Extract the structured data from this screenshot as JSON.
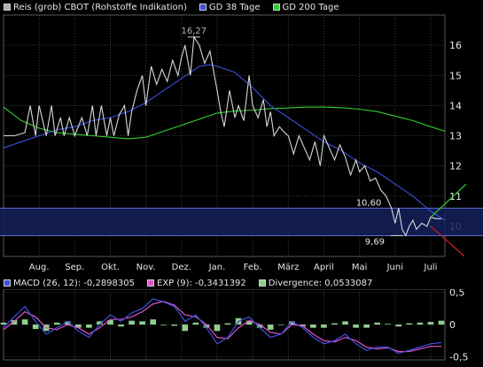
{
  "colors": {
    "background": "#000000",
    "grid": "#404040",
    "price": "#d8d8d8",
    "gd38": "#3b4fe0",
    "gd200": "#2fd02f",
    "band": "#14205a",
    "band_edge": "#5c6fd0",
    "trend_up": "#2fd02f",
    "trend_down": "#d02020",
    "macd": "#3b4fe0",
    "exp": "#e055c8",
    "divergence": "#8fcf8f"
  },
  "legend_main": [
    {
      "label": "Reis (grob) CBOT (Rohstoffe Indikation)",
      "swatch": "#b0b0b0"
    },
    {
      "label": "GD 38 Tage",
      "swatch": "#3b4fe0"
    },
    {
      "label": "GD 200 Tage",
      "swatch": "#2fd02f"
    }
  ],
  "legend_macd": [
    {
      "label": "MACD (26, 12): -0,2898305",
      "swatch": "#3b4fe0"
    },
    {
      "label": "EXP (9): -0,3431392",
      "swatch": "#e055c8"
    },
    {
      "label": "Divergence: 0,0533087",
      "swatch": "#8fcf8f"
    }
  ],
  "chart_data": [
    {
      "type": "line",
      "title": "Reis (grob) CBOT (Rohstoffe Indikation)",
      "ylim": [
        9.0,
        17.0
      ],
      "y_ticks": [
        "16",
        "15",
        "14",
        "13",
        "12",
        "11",
        "10"
      ],
      "y_tick_values": [
        16,
        15,
        14,
        13,
        12,
        11,
        10
      ],
      "xlim": [
        0,
        12.4
      ],
      "x_labels": [
        "Aug.",
        "Sep.",
        "Okt.",
        "Nov.",
        "Dez.",
        "Jan.",
        "Feb.",
        "März",
        "April",
        "Mai",
        "Juni",
        "Juli"
      ],
      "x_label_positions": [
        1,
        2,
        3,
        4,
        5,
        6,
        7,
        8,
        9,
        10,
        11,
        12
      ],
      "annotations": [
        {
          "text": "16,27",
          "x": 5.35,
          "y": 16.27
        },
        {
          "text": "10,60",
          "x": 10.55,
          "y": 10.6
        },
        {
          "text": "9,69",
          "x": 11.05,
          "y": 9.69
        }
      ],
      "band": [
        9.69,
        10.6
      ],
      "series": [
        {
          "name": "Reis (grob) CBOT (Rohstoffe Indikation)",
          "x": [
            0,
            0.3,
            0.6,
            0.75,
            0.9,
            1.0,
            1.2,
            1.35,
            1.45,
            1.6,
            1.7,
            1.85,
            2.0,
            2.2,
            2.35,
            2.5,
            2.6,
            2.75,
            2.9,
            3.0,
            3.1,
            3.25,
            3.4,
            3.5,
            3.6,
            3.75,
            3.9,
            4.0,
            4.15,
            4.3,
            4.45,
            4.6,
            4.75,
            4.9,
            5.0,
            5.1,
            5.25,
            5.35,
            5.5,
            5.65,
            5.8,
            6.0,
            6.1,
            6.2,
            6.35,
            6.5,
            6.6,
            6.75,
            6.9,
            7.0,
            7.15,
            7.3,
            7.4,
            7.5,
            7.6,
            7.75,
            7.9,
            8.0,
            8.15,
            8.3,
            8.45,
            8.6,
            8.75,
            8.9,
            9.0,
            9.15,
            9.3,
            9.45,
            9.6,
            9.75,
            9.9,
            10.0,
            10.15,
            10.3,
            10.45,
            10.6,
            10.75,
            10.9,
            11.0,
            11.1,
            11.2,
            11.3,
            11.4,
            11.5,
            11.6,
            11.75,
            11.9,
            12.0,
            12.15,
            12.3
          ],
          "values": [
            13.0,
            13.0,
            13.1,
            14.0,
            13.0,
            14.0,
            13.0,
            14.0,
            13.0,
            13.6,
            13.0,
            13.6,
            13.0,
            13.6,
            13.0,
            14.0,
            13.0,
            14.0,
            13.0,
            13.6,
            13.0,
            13.7,
            14.0,
            13.0,
            13.8,
            14.5,
            15.0,
            14.0,
            15.3,
            14.7,
            15.2,
            14.8,
            15.5,
            15.0,
            15.6,
            16.0,
            15.0,
            16.27,
            16.0,
            15.4,
            15.8,
            14.5,
            13.8,
            13.3,
            14.5,
            13.6,
            14.0,
            13.5,
            15.0,
            14.0,
            13.6,
            14.2,
            13.3,
            13.8,
            13.0,
            13.3,
            13.1,
            13.0,
            12.4,
            13.0,
            12.6,
            12.2,
            12.8,
            12.0,
            13.0,
            12.6,
            12.2,
            12.7,
            12.3,
            11.7,
            12.2,
            11.8,
            12.0,
            11.5,
            11.6,
            11.2,
            11.0,
            10.6,
            10.1,
            10.6,
            9.9,
            9.69,
            10.0,
            10.2,
            9.9,
            10.1,
            10.0,
            10.3,
            10.25,
            10.25
          ]
        },
        {
          "name": "GD 38 Tage",
          "x": [
            0,
            0.5,
            1.0,
            1.5,
            2.0,
            2.5,
            3.0,
            3.5,
            4.0,
            4.5,
            5.0,
            5.5,
            5.8,
            6.0,
            6.5,
            7.0,
            7.5,
            8.0,
            8.5,
            9.0,
            9.5,
            10.0,
            10.5,
            11.0,
            11.5,
            12.0,
            12.4
          ],
          "values": [
            12.6,
            12.8,
            13.0,
            13.2,
            13.3,
            13.5,
            13.6,
            13.8,
            14.1,
            14.5,
            14.9,
            15.3,
            15.35,
            15.3,
            15.1,
            14.6,
            14.0,
            13.6,
            13.2,
            12.8,
            12.5,
            12.1,
            11.8,
            11.4,
            11.0,
            10.5,
            10.2
          ]
        },
        {
          "name": "GD 200 Tage",
          "x": [
            0,
            0.5,
            1.0,
            1.5,
            2.0,
            2.5,
            3.0,
            3.5,
            4.0,
            4.5,
            5.0,
            5.5,
            6.0,
            6.5,
            7.0,
            7.5,
            8.0,
            8.5,
            9.0,
            9.5,
            10.0,
            10.5,
            11.0,
            11.5,
            12.0,
            12.4
          ],
          "values": [
            13.95,
            13.5,
            13.25,
            13.1,
            13.05,
            13.0,
            12.95,
            12.9,
            12.95,
            13.15,
            13.35,
            13.55,
            13.75,
            13.82,
            13.85,
            13.9,
            13.92,
            13.95,
            13.95,
            13.93,
            13.88,
            13.8,
            13.65,
            13.5,
            13.3,
            13.15
          ]
        }
      ],
      "trend_lines": [
        {
          "direction": "up",
          "x": [
            12.0,
            13.0
          ],
          "values": [
            10.3,
            11.4
          ]
        },
        {
          "direction": "down",
          "x": [
            12.0,
            12.95
          ],
          "values": [
            10.0,
            9.0
          ]
        }
      ]
    },
    {
      "type": "line",
      "title": "MACD",
      "ylim": [
        -0.55,
        0.55
      ],
      "y_ticks": [
        "0,5",
        "0",
        "-0,5"
      ],
      "y_tick_values": [
        0.5,
        0,
        -0.5
      ],
      "xlim": [
        0,
        12.4
      ],
      "series": [
        {
          "name": "MACD (26, 12)",
          "x": [
            0,
            0.3,
            0.6,
            0.9,
            1.2,
            1.5,
            1.8,
            2.1,
            2.4,
            2.7,
            3.0,
            3.3,
            3.6,
            3.9,
            4.2,
            4.5,
            4.8,
            5.1,
            5.4,
            5.7,
            6.0,
            6.3,
            6.6,
            6.9,
            7.2,
            7.5,
            7.8,
            8.1,
            8.4,
            8.7,
            9.0,
            9.3,
            9.6,
            9.9,
            10.2,
            10.5,
            10.8,
            11.1,
            11.4,
            11.7,
            12.0,
            12.3
          ],
          "values": [
            -0.05,
            0.12,
            0.28,
            0.05,
            -0.15,
            -0.05,
            0.05,
            -0.1,
            -0.2,
            0.0,
            0.15,
            0.05,
            0.18,
            0.25,
            0.4,
            0.35,
            0.28,
            0.05,
            0.15,
            -0.05,
            -0.3,
            -0.2,
            0.05,
            0.12,
            -0.05,
            -0.2,
            -0.15,
            0.05,
            -0.05,
            -0.2,
            -0.3,
            -0.25,
            -0.15,
            -0.3,
            -0.4,
            -0.35,
            -0.35,
            -0.45,
            -0.4,
            -0.35,
            -0.3,
            -0.28
          ]
        },
        {
          "name": "EXP (9)",
          "x": [
            0,
            0.3,
            0.6,
            0.9,
            1.2,
            1.5,
            1.8,
            2.1,
            2.4,
            2.7,
            3.0,
            3.3,
            3.6,
            3.9,
            4.2,
            4.5,
            4.8,
            5.1,
            5.4,
            5.7,
            6.0,
            6.3,
            6.6,
            6.9,
            7.2,
            7.5,
            7.8,
            8.1,
            8.4,
            8.7,
            9.0,
            9.3,
            9.6,
            9.9,
            10.2,
            10.5,
            10.8,
            11.1,
            11.4,
            11.7,
            12.0,
            12.3
          ],
          "values": [
            -0.08,
            0.05,
            0.2,
            0.12,
            -0.05,
            -0.08,
            0.0,
            -0.05,
            -0.15,
            -0.05,
            0.08,
            0.08,
            0.12,
            0.2,
            0.32,
            0.36,
            0.3,
            0.15,
            0.12,
            0.0,
            -0.2,
            -0.22,
            -0.05,
            0.06,
            0.0,
            -0.12,
            -0.15,
            0.0,
            -0.02,
            -0.15,
            -0.25,
            -0.27,
            -0.2,
            -0.25,
            -0.35,
            -0.38,
            -0.36,
            -0.42,
            -0.42,
            -0.38,
            -0.34,
            -0.34
          ]
        },
        {
          "name": "Divergence",
          "x": [
            0,
            0.3,
            0.6,
            0.9,
            1.2,
            1.5,
            1.8,
            2.1,
            2.4,
            2.7,
            3.0,
            3.3,
            3.6,
            3.9,
            4.2,
            4.5,
            4.8,
            5.1,
            5.4,
            5.7,
            6.0,
            6.3,
            6.6,
            6.9,
            7.2,
            7.5,
            7.8,
            8.1,
            8.4,
            8.7,
            9.0,
            9.3,
            9.6,
            9.9,
            10.2,
            10.5,
            10.8,
            11.1,
            11.4,
            11.7,
            12.0,
            12.3
          ],
          "values": [
            0.03,
            0.07,
            0.08,
            -0.07,
            -0.1,
            0.03,
            0.05,
            -0.05,
            -0.05,
            0.05,
            0.07,
            -0.03,
            0.06,
            0.05,
            0.08,
            -0.01,
            -0.02,
            -0.1,
            0.03,
            -0.05,
            -0.1,
            0.02,
            0.1,
            0.06,
            -0.05,
            -0.08,
            0.0,
            0.05,
            -0.03,
            -0.05,
            -0.05,
            0.02,
            0.05,
            -0.05,
            -0.05,
            0.03,
            0.01,
            -0.03,
            0.02,
            0.03,
            0.04,
            0.06
          ]
        }
      ]
    }
  ]
}
